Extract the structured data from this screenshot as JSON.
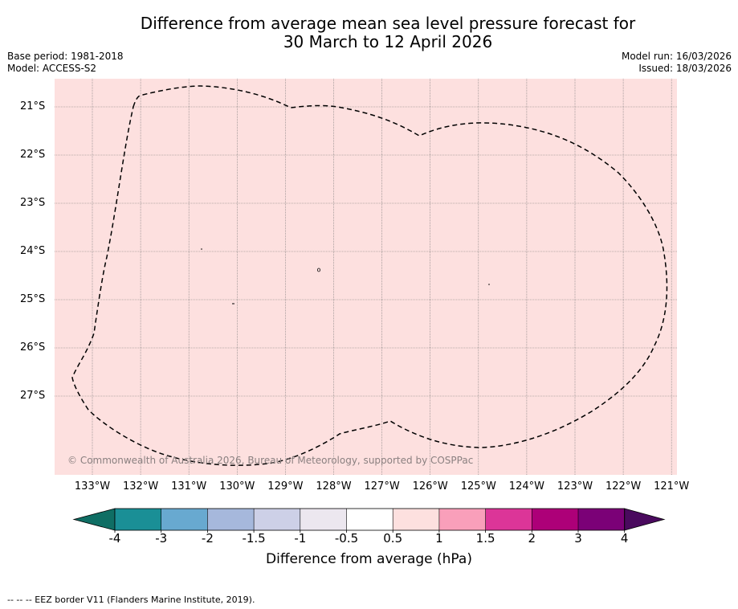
{
  "title": {
    "line1": "Difference from average mean sea level pressure forecast for",
    "line2": "30 March to 12 April 2026"
  },
  "meta": {
    "base_period": "Base period: 1981-2018",
    "model": "Model: ACCESS-S2",
    "model_run": "Model run: 16/03/2026",
    "issued": "Issued: 18/03/2026"
  },
  "map": {
    "background_color": "#fde0df",
    "lat_labels": [
      "21°S",
      "22°S",
      "23°S",
      "24°S",
      "25°S",
      "26°S",
      "27°S"
    ],
    "lon_labels": [
      "133°W",
      "132°W",
      "131°W",
      "130°W",
      "129°W",
      "128°W",
      "127°W",
      "126°W",
      "125°W",
      "124°W",
      "123°W",
      "122°W",
      "121°W"
    ],
    "copyright": "© Commonwealth of Australia 2026, Bureau of Meteorology, supported by COSPPac"
  },
  "colorbar": {
    "label": "Difference from average (hPa)",
    "ticks": [
      "-4",
      "-3",
      "-2",
      "-1.5",
      "-1",
      "-0.5",
      "0.5",
      "1",
      "1.5",
      "2",
      "3",
      "4"
    ],
    "under_color": "#0f6e64",
    "over_color": "#4a0a5e",
    "colors": [
      "#1a8f96",
      "#68a9d0",
      "#a6b8dc",
      "#cdd0e7",
      "#ece7ef",
      "#ffffff",
      "#fde0df",
      "#f99fba",
      "#dc3598",
      "#ad0078",
      "#7b0177"
    ]
  },
  "footer": "-- -- -- EEZ border V11 (Flanders Marine Institute, 2019)."
}
